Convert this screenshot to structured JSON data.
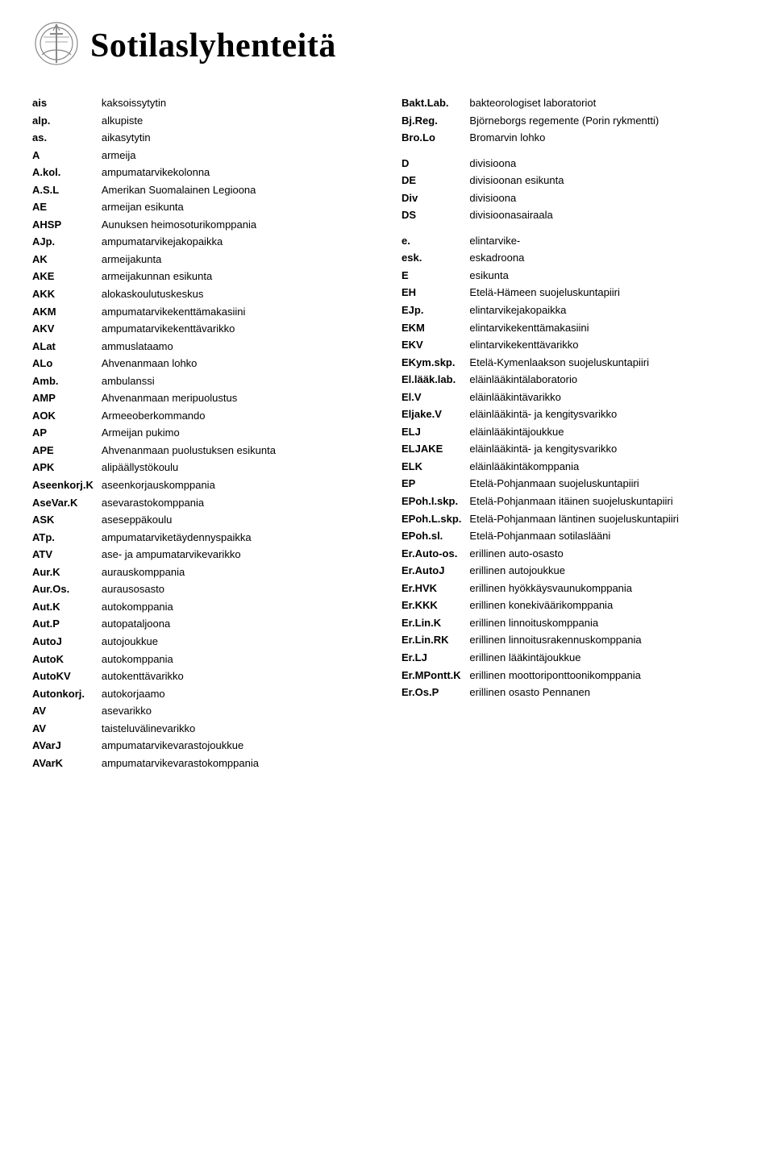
{
  "title": "Sotilaslyhenteitä",
  "colors": {
    "background": "#ffffff",
    "text": "#000000",
    "emblem_stroke": "#888888"
  },
  "typography": {
    "title_font": "Times New Roman",
    "title_size_pt": 42,
    "title_weight": 700,
    "body_font": "Verdana",
    "body_size_pt": 13,
    "abbr_weight": 700,
    "full_weight": 400
  },
  "left": [
    {
      "abbr": "ais",
      "full": "kaksoissytytin"
    },
    {
      "abbr": "alp.",
      "full": "alkupiste"
    },
    {
      "abbr": "as.",
      "full": "aikasytytin"
    },
    {
      "abbr": "A",
      "full": "armeija"
    },
    {
      "abbr": "A.kol.",
      "full": "ampumatarvikekolonna"
    },
    {
      "abbr": "A.S.L",
      "full": "Amerikan Suomalainen Legioona"
    },
    {
      "abbr": "AE",
      "full": "armeijan esikunta"
    },
    {
      "abbr": "AHSP",
      "full": "Aunuksen heimosoturikomppania"
    },
    {
      "abbr": "AJp.",
      "full": "ampumatarvikejakopaikka"
    },
    {
      "abbr": "AK",
      "full": "armeijakunta"
    },
    {
      "abbr": "AKE",
      "full": "armeijakunnan esikunta"
    },
    {
      "abbr": "AKK",
      "full": "alokaskoulutuskeskus"
    },
    {
      "abbr": "AKM",
      "full": "ampumatarvikekenttämakasiini"
    },
    {
      "abbr": "AKV",
      "full": "ampumatarvikekenttävarikko"
    },
    {
      "abbr": "ALat",
      "full": "ammuslataamo"
    },
    {
      "abbr": "ALo",
      "full": "Ahvenanmaan lohko"
    },
    {
      "abbr": "Amb.",
      "full": "ambulanssi"
    },
    {
      "abbr": "AMP",
      "full": "Ahvenanmaan meripuolustus"
    },
    {
      "abbr": "AOK",
      "full": "Armeeoberkommando"
    },
    {
      "abbr": "AP",
      "full": "Armeijan pukimo"
    },
    {
      "abbr": "APE",
      "full": "Ahvenanmaan puolustuksen esikunta"
    },
    {
      "abbr": "APK",
      "full": "alipäällystökoulu"
    },
    {
      "abbr": "Aseenkorj.K",
      "full": "aseenkorjauskomppania"
    },
    {
      "abbr": "AseVar.K",
      "full": "asevarastokomppania"
    },
    {
      "abbr": "ASK",
      "full": "aseseppäkoulu"
    },
    {
      "abbr": "ATp.",
      "full": "ampumatarviketäydennyspaikka"
    },
    {
      "abbr": "ATV",
      "full": "ase- ja ampumatarvikevarikko"
    },
    {
      "abbr": "Aur.K",
      "full": "aurauskomppania"
    },
    {
      "abbr": "Aur.Os.",
      "full": "aurausosasto"
    },
    {
      "abbr": "Aut.K",
      "full": "autokomppania"
    },
    {
      "abbr": "Aut.P",
      "full": "autopataljoona"
    },
    {
      "abbr": "AutoJ",
      "full": "autojoukkue"
    },
    {
      "abbr": "AutoK",
      "full": "autokomppania"
    },
    {
      "abbr": "AutoKV",
      "full": "autokenttävarikko"
    },
    {
      "abbr": "Autonkorj.",
      "full": "autokorjaamo"
    },
    {
      "abbr": "AV",
      "full": "asevarikko"
    },
    {
      "abbr": "AV",
      "full": "taisteluvälinevarikko"
    },
    {
      "abbr": "AVarJ",
      "full": "ampumatarvikevarastojoukkue"
    },
    {
      "abbr": "AVarK",
      "full": "ampumatarvikevarastokomppania"
    }
  ],
  "right": [
    {
      "abbr": "Bakt.Lab.",
      "full": "bakteorologiset laboratoriot"
    },
    {
      "abbr": "Bj.Reg.",
      "full": "Björneborgs regemente (Porin rykmentti)"
    },
    {
      "abbr": "Bro.Lo",
      "full": "Bromarvin lohko"
    },
    {
      "gap": true
    },
    {
      "abbr": "D",
      "full": "divisioona"
    },
    {
      "abbr": "DE",
      "full": "divisioonan esikunta"
    },
    {
      "abbr": "Div",
      "full": "divisioona"
    },
    {
      "abbr": "DS",
      "full": "divisioonasairaala"
    },
    {
      "gap": true
    },
    {
      "abbr": "e.",
      "full": "elintarvike-"
    },
    {
      "abbr": "esk.",
      "full": "eskadroona"
    },
    {
      "abbr": "E",
      "full": "esikunta"
    },
    {
      "abbr": "EH",
      "full": "Etelä-Hämeen suojeluskuntapiiri"
    },
    {
      "abbr": "EJp.",
      "full": "elintarvikejakopaikka"
    },
    {
      "abbr": "EKM",
      "full": "elintarvikekenttämakasiini"
    },
    {
      "abbr": "EKV",
      "full": "elintarvikekenttävarikko"
    },
    {
      "abbr": "EKym.skp.",
      "full": "Etelä-Kymenlaakson suojeluskuntapiiri"
    },
    {
      "abbr": "El.lääk.lab.",
      "full": "eläinlääkintälaboratorio"
    },
    {
      "abbr": "El.V",
      "full": "eläinlääkintävarikko"
    },
    {
      "abbr": "Eljake.V",
      "full": "eläinlääkintä- ja kengitysvarikko"
    },
    {
      "abbr": "ELJ",
      "full": "eläinlääkintäjoukkue"
    },
    {
      "abbr": "ELJAKE",
      "full": "eläinlääkintä- ja kengitysvarikko"
    },
    {
      "abbr": "ELK",
      "full": "eläinlääkintäkomppania"
    },
    {
      "abbr": "EP",
      "full": "Etelä-Pohjanmaan suojeluskuntapiiri"
    },
    {
      "abbr": "EPoh.I.skp.",
      "full": "Etelä-Pohjanmaan itäinen suojeluskuntapiiri"
    },
    {
      "abbr": "EPoh.L.skp.",
      "full": "Etelä-Pohjanmaan läntinen suojeluskuntapiiri"
    },
    {
      "abbr": "EPoh.sl.",
      "full": "Etelä-Pohjanmaan sotilaslääni"
    },
    {
      "abbr": "Er.Auto-os.",
      "full": "erillinen auto-osasto"
    },
    {
      "abbr": "Er.AutoJ",
      "full": "erillinen autojoukkue"
    },
    {
      "abbr": "Er.HVK",
      "full": "erillinen hyökkäysvaunukomppania"
    },
    {
      "abbr": "Er.KKK",
      "full": "erillinen konekiväärikomppania"
    },
    {
      "abbr": "Er.Lin.K",
      "full": "erillinen linnoituskomppania"
    },
    {
      "abbr": "Er.Lin.RK",
      "full": "erillinen linnoitusrakennuskomppania"
    },
    {
      "abbr": "Er.LJ",
      "full": "erillinen lääkintäjoukkue"
    },
    {
      "abbr": "Er.MPontt.K",
      "full": "erillinen moottoriponttoonikomppania"
    },
    {
      "abbr": "Er.Os.P",
      "full": "erillinen osasto Pennanen"
    }
  ]
}
